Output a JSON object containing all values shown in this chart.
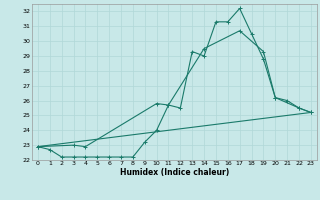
{
  "title": "",
  "xlabel": "Humidex (Indice chaleur)",
  "background_color": "#c8e8e8",
  "grid_color": "#b0d8d8",
  "line_color": "#1a7a6a",
  "xlim": [
    -0.5,
    23.5
  ],
  "ylim": [
    22,
    32.5
  ],
  "xticks": [
    0,
    1,
    2,
    3,
    4,
    5,
    6,
    7,
    8,
    9,
    10,
    11,
    12,
    13,
    14,
    15,
    16,
    17,
    18,
    19,
    20,
    21,
    22,
    23
  ],
  "yticks": [
    22,
    23,
    24,
    25,
    26,
    27,
    28,
    29,
    30,
    31,
    32
  ],
  "curve1_x": [
    0,
    1,
    2,
    3,
    4,
    5,
    6,
    7,
    8,
    9,
    10,
    11,
    12,
    13,
    14,
    15,
    16,
    17,
    18,
    19,
    20,
    21,
    22,
    23
  ],
  "curve1_y": [
    22.9,
    22.7,
    22.2,
    22.2,
    22.2,
    22.2,
    22.2,
    22.2,
    22.2,
    23.2,
    24.0,
    25.7,
    25.5,
    29.3,
    29.0,
    31.3,
    31.3,
    32.2,
    30.5,
    28.8,
    26.2,
    26.0,
    25.5,
    25.2
  ],
  "curve2_x": [
    0,
    3,
    4,
    10,
    11,
    14,
    17,
    19,
    20,
    22,
    23
  ],
  "curve2_y": [
    22.9,
    23.0,
    22.9,
    25.8,
    25.7,
    29.5,
    30.7,
    29.3,
    26.2,
    25.5,
    25.2
  ],
  "curve3_x": [
    0,
    23
  ],
  "curve3_y": [
    22.9,
    25.2
  ]
}
